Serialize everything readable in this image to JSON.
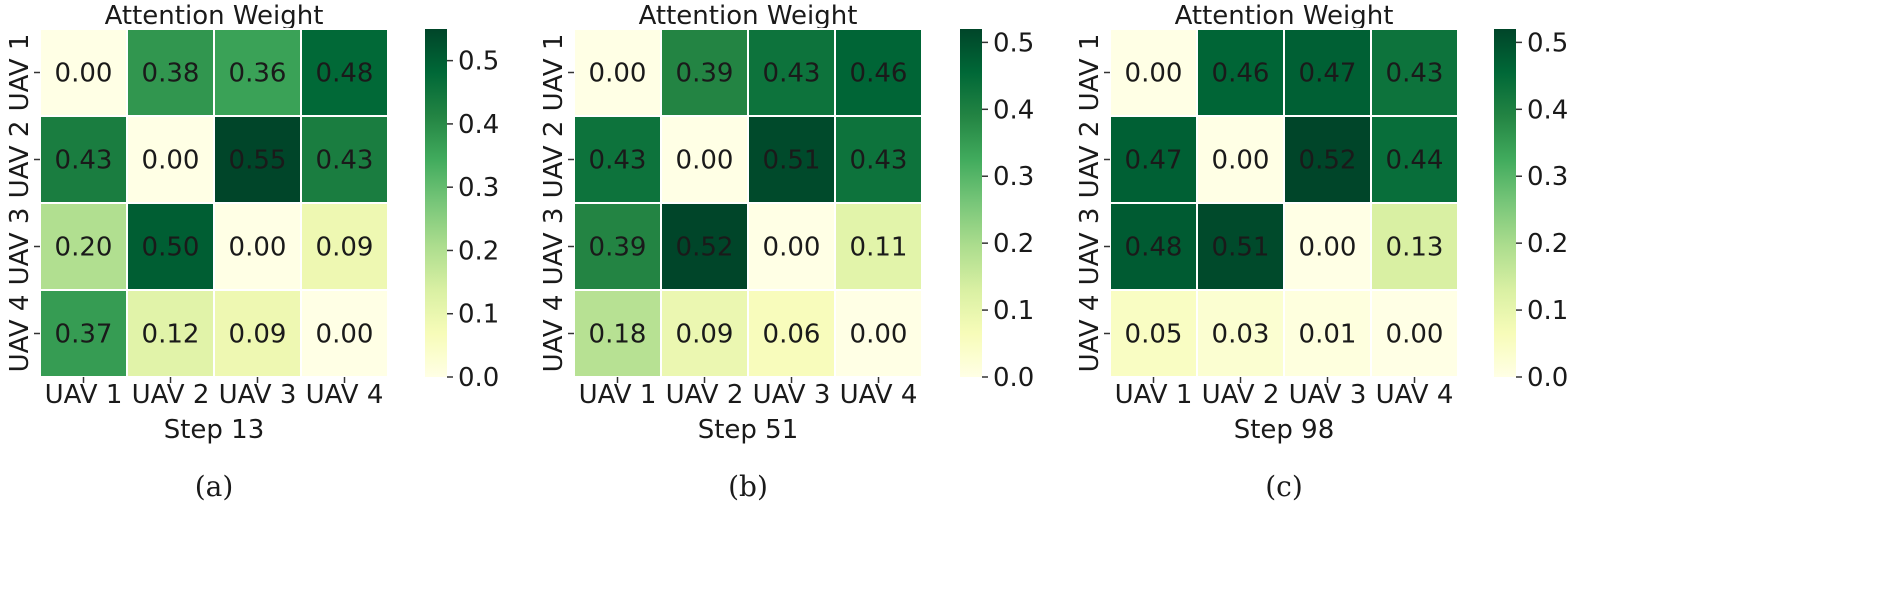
{
  "chart_data": [
    {
      "type": "heatmap",
      "title": "Attention Weight",
      "xlabel": "Step 13",
      "caption": "(a)",
      "x_categories": [
        "UAV 1",
        "UAV 2",
        "UAV 3",
        "UAV 4"
      ],
      "y_categories": [
        "UAV 1",
        "UAV 2",
        "UAV 3",
        "UAV 4"
      ],
      "values": [
        [
          0.0,
          0.38,
          0.36,
          0.48
        ],
        [
          0.43,
          0.0,
          0.55,
          0.43
        ],
        [
          0.2,
          0.5,
          0.0,
          0.09
        ],
        [
          0.37,
          0.12,
          0.09,
          0.0
        ]
      ],
      "colorbar": {
        "range": [
          0,
          0.55
        ],
        "ticks": [
          "0.0",
          "0.1",
          "0.2",
          "0.3",
          "0.4",
          "0.5"
        ],
        "colormap": "YlGn"
      }
    },
    {
      "type": "heatmap",
      "title": "Attention Weight",
      "xlabel": "Step 51",
      "caption": "(b)",
      "x_categories": [
        "UAV 1",
        "UAV 2",
        "UAV 3",
        "UAV 4"
      ],
      "y_categories": [
        "UAV 1",
        "UAV 2",
        "UAV 3",
        "UAV 4"
      ],
      "values": [
        [
          0.0,
          0.39,
          0.43,
          0.46
        ],
        [
          0.43,
          0.0,
          0.51,
          0.43
        ],
        [
          0.39,
          0.52,
          0.0,
          0.11
        ],
        [
          0.18,
          0.09,
          0.06,
          0.0
        ]
      ],
      "colorbar": {
        "range": [
          0,
          0.52
        ],
        "ticks": [
          "0.0",
          "0.1",
          "0.2",
          "0.3",
          "0.4",
          "0.5"
        ],
        "colormap": "YlGn"
      }
    },
    {
      "type": "heatmap",
      "title": "Attention Weight",
      "xlabel": "Step 98",
      "caption": "(c)",
      "x_categories": [
        "UAV 1",
        "UAV 2",
        "UAV 3",
        "UAV 4"
      ],
      "y_categories": [
        "UAV 1",
        "UAV 2",
        "UAV 3",
        "UAV 4"
      ],
      "values": [
        [
          0.0,
          0.46,
          0.47,
          0.43
        ],
        [
          0.47,
          0.0,
          0.52,
          0.44
        ],
        [
          0.48,
          0.51,
          0.0,
          0.13
        ],
        [
          0.05,
          0.03,
          0.01,
          0.0
        ]
      ],
      "colorbar": {
        "range": [
          0,
          0.52
        ],
        "ticks": [
          "0.0",
          "0.1",
          "0.2",
          "0.3",
          "0.4",
          "0.5"
        ],
        "colormap": "YlGn"
      }
    }
  ],
  "colors": {
    "colormap_stops": [
      "#ffffe5",
      "#f7fcb9",
      "#d9f0a3",
      "#addd8e",
      "#78c679",
      "#41ab5d",
      "#238443",
      "#006837",
      "#004529"
    ],
    "text_dark": "#1a1a1a",
    "cell_border": "#ffffff"
  }
}
